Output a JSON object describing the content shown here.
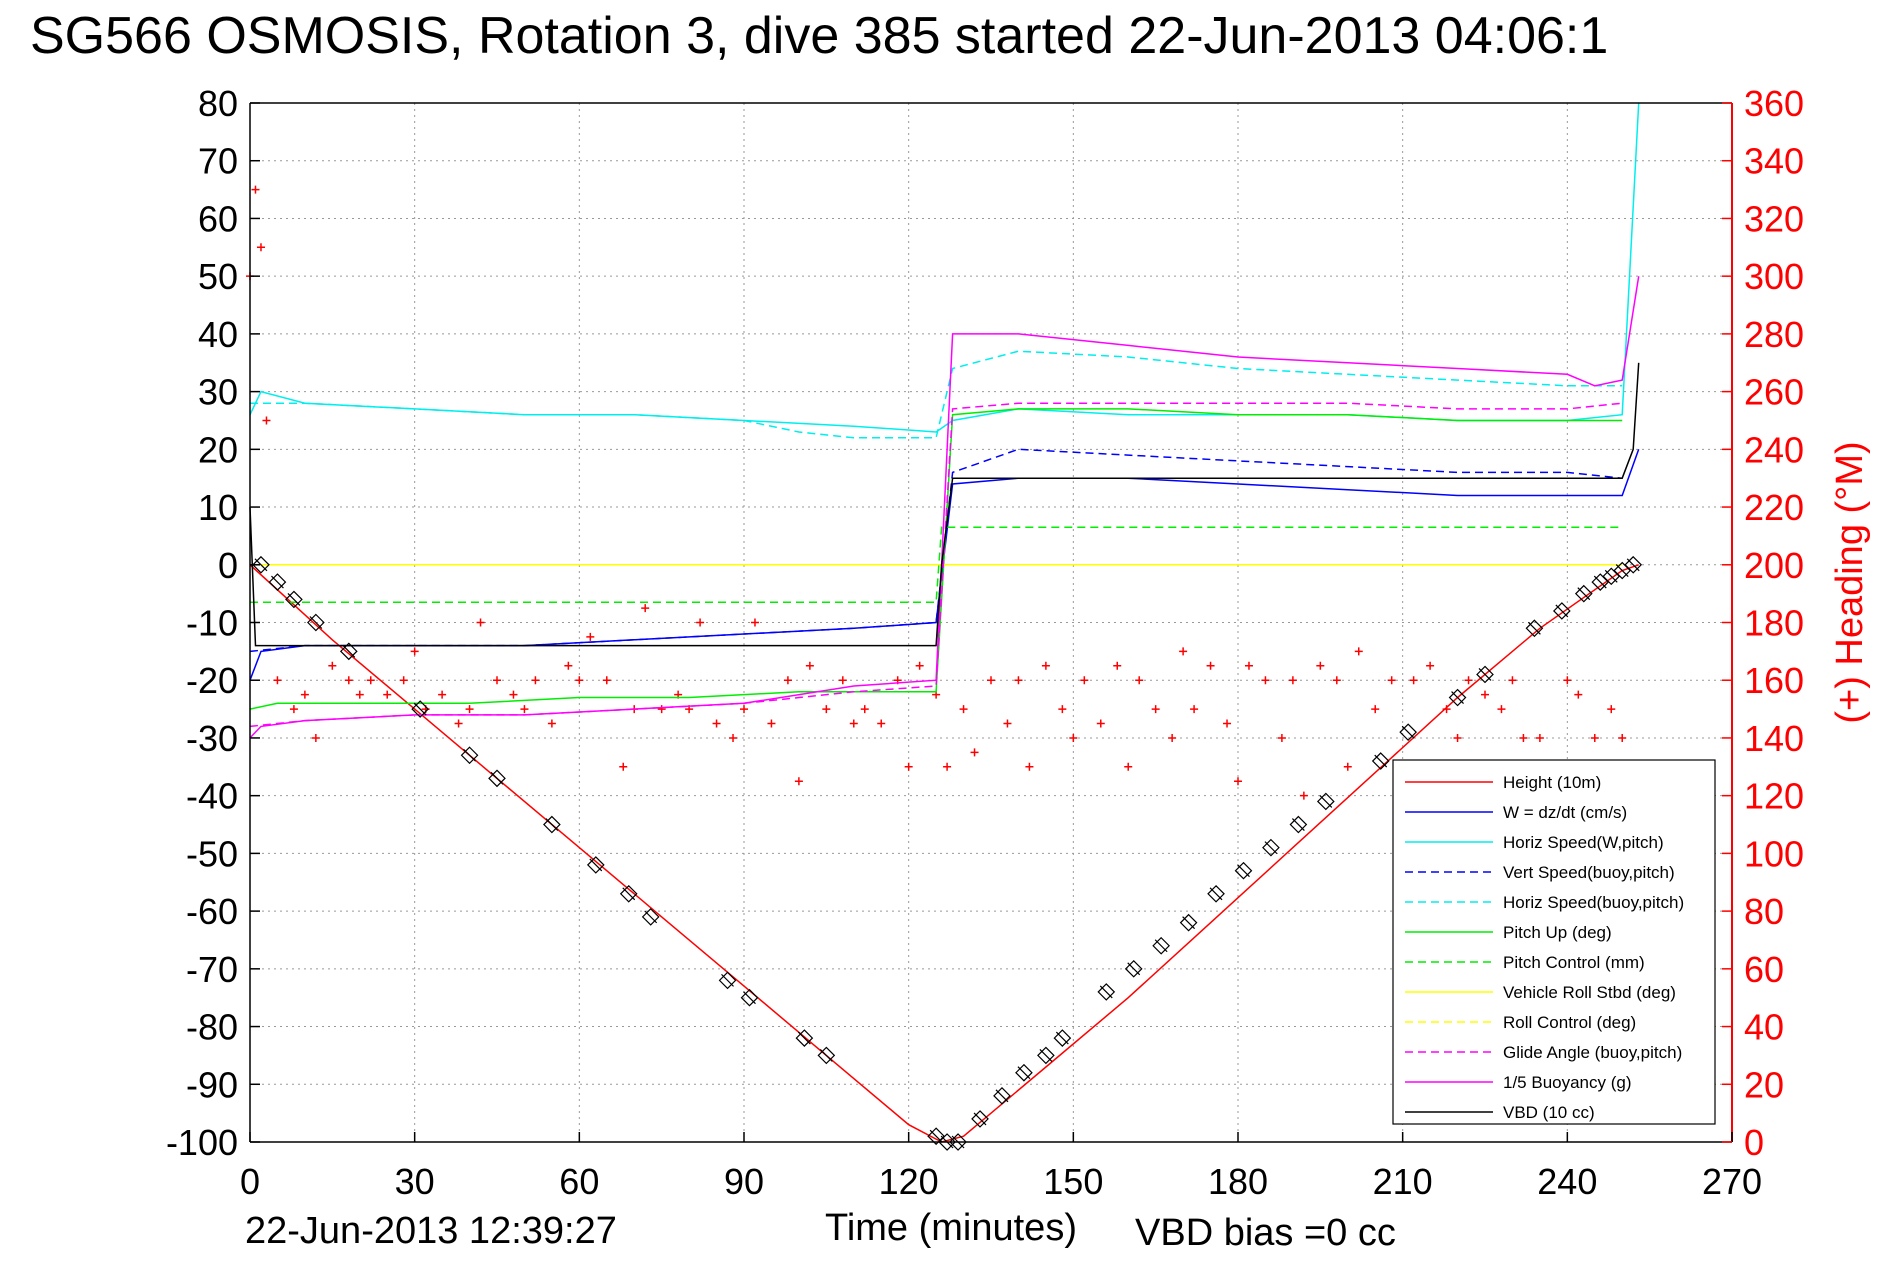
{
  "title": "SG566 OSMOSIS, Rotation 3, dive 385 started 22-Jun-2013 04:06:1",
  "footer": {
    "timestamp": "22-Jun-2013 12:39:27",
    "vbd_bias": "VBD bias =0 cc"
  },
  "chart_data": {
    "type": "line",
    "title": "SG566 OSMOSIS, Rotation 3, dive 385 started 22-Jun-2013 04:06:1",
    "xlabel": "Time (minutes)",
    "ylabel_right": "(+) Heading (°M)",
    "xlim": [
      0,
      270
    ],
    "ylim": [
      -100,
      80
    ],
    "ylim_right": [
      0,
      360
    ],
    "xticks": [
      0,
      30,
      60,
      90,
      120,
      150,
      180,
      210,
      240,
      270
    ],
    "yticks": [
      -100,
      -90,
      -80,
      -70,
      -60,
      -50,
      -40,
      -30,
      -20,
      -10,
      0,
      10,
      20,
      30,
      40,
      50,
      60,
      70,
      80
    ],
    "yticks_right": [
      0,
      20,
      40,
      60,
      80,
      100,
      120,
      140,
      160,
      180,
      200,
      220,
      240,
      260,
      280,
      300,
      320,
      340,
      360
    ],
    "grid": true,
    "legend_position": "bottom-right",
    "series": [
      {
        "name": "Height (10m)",
        "color": "#ff0000",
        "style": "solid",
        "x": [
          0,
          15,
          30,
          45,
          60,
          75,
          90,
          105,
          120,
          126,
          130,
          145,
          160,
          175,
          190,
          205,
          220,
          235,
          250,
          253
        ],
        "y": [
          0,
          -13,
          -25,
          -37,
          -49,
          -61,
          -73,
          -85,
          -97,
          -100,
          -99,
          -87,
          -75,
          -62,
          -49,
          -36,
          -23,
          -11,
          -1,
          0
        ]
      },
      {
        "name": "W = dz/dt (cm/s)",
        "color": "#0000ff",
        "style": "solid",
        "x": [
          0,
          2,
          10,
          30,
          50,
          70,
          90,
          110,
          125,
          128,
          140,
          160,
          180,
          200,
          220,
          240,
          250,
          253
        ],
        "y": [
          -20,
          -15,
          -14,
          -14,
          -14,
          -13,
          -12,
          -11,
          -10,
          14,
          15,
          15,
          14,
          13,
          12,
          12,
          12,
          20
        ]
      },
      {
        "name": "Horiz Speed(W,pitch)",
        "color": "#00eeee",
        "style": "solid",
        "x": [
          0,
          2,
          10,
          30,
          50,
          70,
          90,
          110,
          125,
          128,
          140,
          160,
          180,
          200,
          220,
          240,
          250,
          253
        ],
        "y": [
          26,
          30,
          28,
          27,
          26,
          26,
          25,
          24,
          23,
          25,
          27,
          26,
          26,
          26,
          25,
          25,
          26,
          80
        ]
      },
      {
        "name": "Vert Speed(buoy,pitch)",
        "color": "#0000ff",
        "style": "dashed",
        "x": [
          0,
          10,
          30,
          50,
          70,
          90,
          110,
          125,
          128,
          140,
          160,
          180,
          200,
          220,
          240,
          250
        ],
        "y": [
          -15,
          -14,
          -14,
          -14,
          -13,
          -12,
          -11,
          -10,
          16,
          20,
          19,
          18,
          17,
          16,
          16,
          15
        ]
      },
      {
        "name": "Horiz Speed(buoy,pitch)",
        "color": "#00eeee",
        "style": "dashed",
        "x": [
          0,
          10,
          30,
          50,
          70,
          90,
          100,
          110,
          125,
          128,
          140,
          160,
          180,
          200,
          220,
          240,
          250
        ],
        "y": [
          28,
          28,
          27,
          26,
          26,
          25,
          23,
          22,
          22,
          34,
          37,
          36,
          34,
          33,
          32,
          31,
          31
        ]
      },
      {
        "name": "Pitch Up (deg)",
        "color": "#00ee00",
        "style": "solid",
        "x": [
          0,
          5,
          20,
          40,
          60,
          80,
          100,
          120,
          125,
          128,
          140,
          160,
          180,
          200,
          220,
          240,
          250
        ],
        "y": [
          -25,
          -24,
          -24,
          -24,
          -23,
          -23,
          -22,
          -22,
          -22,
          26,
          27,
          27,
          26,
          26,
          25,
          25,
          25
        ]
      },
      {
        "name": "Pitch Control (mm)",
        "color": "#00ee00",
        "style": "dashed",
        "x": [
          0,
          125,
          126,
          250
        ],
        "y": [
          -6.5,
          -6.5,
          6.5,
          6.5
        ]
      },
      {
        "name": "Vehicle Roll Stbd (deg)",
        "color": "#ffff00",
        "style": "solid",
        "x": [
          0,
          125,
          126,
          250
        ],
        "y": [
          0,
          0,
          0,
          0
        ]
      },
      {
        "name": "Roll Control (deg)",
        "color": "#ffff00",
        "style": "dashed",
        "x": [
          0,
          250
        ],
        "y": [
          0,
          0
        ]
      },
      {
        "name": "Glide Angle (buoy,pitch)",
        "color": "#ff00ff",
        "style": "dashed",
        "x": [
          0,
          10,
          30,
          50,
          70,
          90,
          110,
          125,
          128,
          140,
          160,
          180,
          200,
          220,
          240,
          250
        ],
        "y": [
          -28,
          -27,
          -26,
          -26,
          -25,
          -24,
          -22,
          -21,
          27,
          28,
          28,
          28,
          28,
          27,
          27,
          28
        ]
      },
      {
        "name": "1/5 Buoyancy (g)",
        "color": "#ff00ff",
        "style": "solid",
        "x": [
          0,
          2,
          10,
          30,
          50,
          70,
          90,
          110,
          125,
          128,
          140,
          160,
          180,
          200,
          220,
          240,
          245,
          250,
          253
        ],
        "y": [
          -30,
          -28,
          -27,
          -26,
          -26,
          -25,
          -24,
          -21,
          -20,
          40,
          40,
          38,
          36,
          35,
          34,
          33,
          31,
          32,
          50
        ]
      },
      {
        "name": "VBD (10 cc)",
        "color": "#000000",
        "style": "solid",
        "x": [
          0,
          1,
          2,
          125,
          126,
          128,
          250,
          252,
          253
        ],
        "y": [
          10,
          -14,
          -14,
          -14,
          0,
          15,
          15,
          20,
          35
        ]
      }
    ],
    "heading_series": {
      "name": "(+) Heading",
      "color": "#ff0000",
      "marker": "+",
      "x": [
        0,
        1,
        2,
        3,
        5,
        8,
        10,
        12,
        15,
        18,
        20,
        22,
        25,
        28,
        30,
        32,
        35,
        38,
        40,
        42,
        45,
        48,
        50,
        52,
        55,
        58,
        60,
        62,
        65,
        68,
        70,
        72,
        75,
        78,
        80,
        82,
        85,
        88,
        90,
        92,
        95,
        98,
        100,
        102,
        105,
        108,
        110,
        112,
        115,
        118,
        120,
        122,
        125,
        127,
        130,
        132,
        135,
        138,
        140,
        142,
        145,
        148,
        150,
        152,
        155,
        158,
        160,
        162,
        165,
        168,
        170,
        172,
        175,
        178,
        180,
        182,
        185,
        188,
        190,
        192,
        195,
        198,
        200,
        202,
        205,
        208,
        210,
        212,
        215,
        218,
        220,
        222,
        225,
        228,
        230,
        232,
        235,
        238,
        240,
        242,
        245,
        248,
        250
      ],
      "y": [
        300,
        330,
        310,
        250,
        160,
        150,
        155,
        140,
        165,
        160,
        155,
        160,
        155,
        160,
        170,
        150,
        155,
        145,
        150,
        180,
        160,
        155,
        150,
        160,
        145,
        165,
        160,
        175,
        160,
        130,
        150,
        185,
        150,
        155,
        150,
        180,
        145,
        140,
        150,
        180,
        145,
        160,
        125,
        165,
        150,
        160,
        145,
        150,
        145,
        160,
        130,
        165,
        155,
        130,
        150,
        135,
        160,
        145,
        160,
        130,
        165,
        150,
        140,
        160,
        145,
        165,
        130,
        160,
        150,
        140,
        170,
        150,
        165,
        145,
        125,
        165,
        160,
        140,
        160,
        120,
        165,
        160,
        130,
        170,
        150,
        160,
        130,
        160,
        165,
        150,
        140,
        160,
        155,
        150,
        160,
        140,
        140,
        130,
        160,
        155,
        140,
        150,
        140
      ]
    },
    "markers": {
      "name": "Height samples",
      "color": "#000000",
      "marker": "diamond",
      "x": [
        2,
        5,
        8,
        12,
        18,
        31,
        40,
        45,
        55,
        63,
        69,
        73,
        87,
        91,
        101,
        105,
        125,
        127,
        129,
        133,
        137,
        141,
        145,
        148,
        156,
        161,
        166,
        171,
        176,
        181,
        186,
        191,
        196,
        206,
        211,
        220,
        225,
        234,
        239,
        243,
        246,
        248,
        250,
        252
      ],
      "y": [
        0,
        -3,
        -6,
        -10,
        -15,
        -25,
        -33,
        -37,
        -45,
        -52,
        -57,
        -61,
        -72,
        -75,
        -82,
        -85,
        -99,
        -100,
        -100,
        -96,
        -92,
        -88,
        -85,
        -82,
        -74,
        -70,
        -66,
        -62,
        -57,
        -53,
        -49,
        -45,
        -41,
        -34,
        -29,
        -23,
        -19,
        -11,
        -8,
        -5,
        -3,
        -2,
        -1,
        0
      ]
    }
  },
  "legend": [
    {
      "label": "Height (10m)",
      "color": "#ff0000",
      "style": "solid"
    },
    {
      "label": "W = dz/dt (cm/s)",
      "color": "#0000ff",
      "style": "solid"
    },
    {
      "label": "Horiz Speed(W,pitch)",
      "color": "#00eeee",
      "style": "solid"
    },
    {
      "label": "Vert Speed(buoy,pitch)",
      "color": "#0000ff",
      "style": "dashed"
    },
    {
      "label": "Horiz Speed(buoy,pitch)",
      "color": "#00eeee",
      "style": "dashed"
    },
    {
      "label": "Pitch Up (deg)",
      "color": "#00ee00",
      "style": "solid"
    },
    {
      "label": "Pitch Control (mm)",
      "color": "#00ee00",
      "style": "dashed"
    },
    {
      "label": "Vehicle Roll Stbd (deg)",
      "color": "#ffff00",
      "style": "solid"
    },
    {
      "label": "Roll Control (deg)",
      "color": "#ffff00",
      "style": "dashed"
    },
    {
      "label": "Glide Angle (buoy,pitch)",
      "color": "#ff00ff",
      "style": "dashed"
    },
    {
      "label": "1/5 Buoyancy (g)",
      "color": "#ff00ff",
      "style": "solid"
    },
    {
      "label": "VBD (10 cc)",
      "color": "#000000",
      "style": "solid"
    }
  ]
}
